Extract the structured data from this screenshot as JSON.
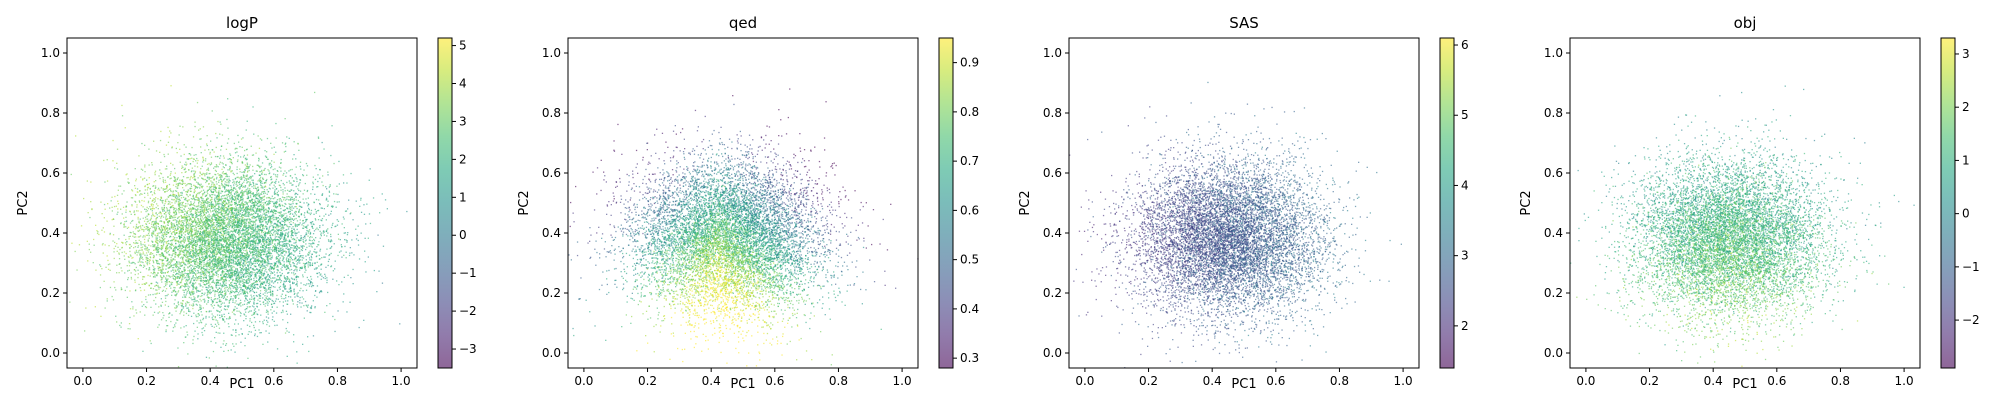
{
  "chart_data": [
    {
      "type": "scatter",
      "title": "logP",
      "xlabel": "PC1",
      "ylabel": "PC2",
      "xlim": [
        -0.05,
        1.05
      ],
      "ylim": [
        -0.05,
        1.05
      ],
      "xticks": [
        "0.0",
        "0.2",
        "0.4",
        "0.6",
        "0.8",
        "1.0"
      ],
      "yticks": [
        "0.0",
        "0.2",
        "0.4",
        "0.6",
        "0.8",
        "1.0"
      ],
      "grid": false,
      "colormap": "viridis",
      "colorbar": {
        "min": -3.5,
        "max": 5.2,
        "ticks": [
          "−3",
          "−2",
          "−1",
          "0",
          "1",
          "2",
          "3",
          "4",
          "5"
        ]
      },
      "cloud": {
        "center": [
          0.45,
          0.38
        ],
        "spread": [
          0.15,
          0.13
        ],
        "points": 9000,
        "color_trend": "greener at upper-left, teal toward lower-right; values mostly 1 to 3",
        "value_range": [
          0.0,
          4.0
        ]
      }
    },
    {
      "type": "scatter",
      "title": "qed",
      "xlabel": "PC1",
      "ylabel": "PC2",
      "xlim": [
        -0.05,
        1.05
      ],
      "ylim": [
        -0.05,
        1.05
      ],
      "xticks": [
        "0.0",
        "0.2",
        "0.4",
        "0.6",
        "0.8",
        "1.0"
      ],
      "yticks": [
        "0.0",
        "0.2",
        "0.4",
        "0.6",
        "0.8",
        "1.0"
      ],
      "grid": false,
      "colormap": "viridis",
      "colorbar": {
        "min": 0.28,
        "max": 0.95,
        "ticks": [
          "0.3",
          "0.4",
          "0.5",
          "0.6",
          "0.7",
          "0.8",
          "0.9"
        ]
      },
      "cloud": {
        "center": [
          0.45,
          0.38
        ],
        "spread": [
          0.15,
          0.13
        ],
        "points": 9000,
        "color_trend": "yellow (high) around (0.4, 0.3), teal/blue toward top",
        "value_range": [
          0.45,
          0.95
        ]
      }
    },
    {
      "type": "scatter",
      "title": "SAS",
      "xlabel": "PC1",
      "ylabel": "PC2",
      "xlim": [
        -0.05,
        1.05
      ],
      "ylim": [
        -0.05,
        1.05
      ],
      "xticks": [
        "0.0",
        "0.2",
        "0.4",
        "0.6",
        "0.8",
        "1.0"
      ],
      "yticks": [
        "0.0",
        "0.2",
        "0.4",
        "0.6",
        "0.8",
        "1.0"
      ],
      "grid": false,
      "colormap": "viridis",
      "colorbar": {
        "min": 1.4,
        "max": 6.1,
        "ticks": [
          "2",
          "3",
          "4",
          "5",
          "6"
        ]
      },
      "cloud": {
        "center": [
          0.45,
          0.38
        ],
        "spread": [
          0.15,
          0.13
        ],
        "points": 9000,
        "color_trend": "mostly dark purple (low, 2 to 3), slightly lighter toward right",
        "value_range": [
          1.6,
          3.2
        ]
      }
    },
    {
      "type": "scatter",
      "title": "obj",
      "xlabel": "PC1",
      "ylabel": "PC2",
      "xlim": [
        -0.05,
        1.05
      ],
      "ylim": [
        -0.05,
        1.05
      ],
      "xticks": [
        "0.0",
        "0.2",
        "0.4",
        "0.6",
        "0.8",
        "1.0"
      ],
      "yticks": [
        "0.0",
        "0.2",
        "0.4",
        "0.6",
        "0.8",
        "1.0"
      ],
      "grid": false,
      "colormap": "viridis",
      "colorbar": {
        "min": -2.9,
        "max": 3.3,
        "ticks": [
          "−2",
          "−1",
          "0",
          "1",
          "2",
          "3"
        ]
      },
      "cloud": {
        "center": [
          0.45,
          0.38
        ],
        "spread": [
          0.15,
          0.13
        ],
        "points": 9000,
        "color_trend": "yellow-green at lower-center, teal at top",
        "value_range": [
          0.0,
          2.6
        ]
      }
    }
  ]
}
